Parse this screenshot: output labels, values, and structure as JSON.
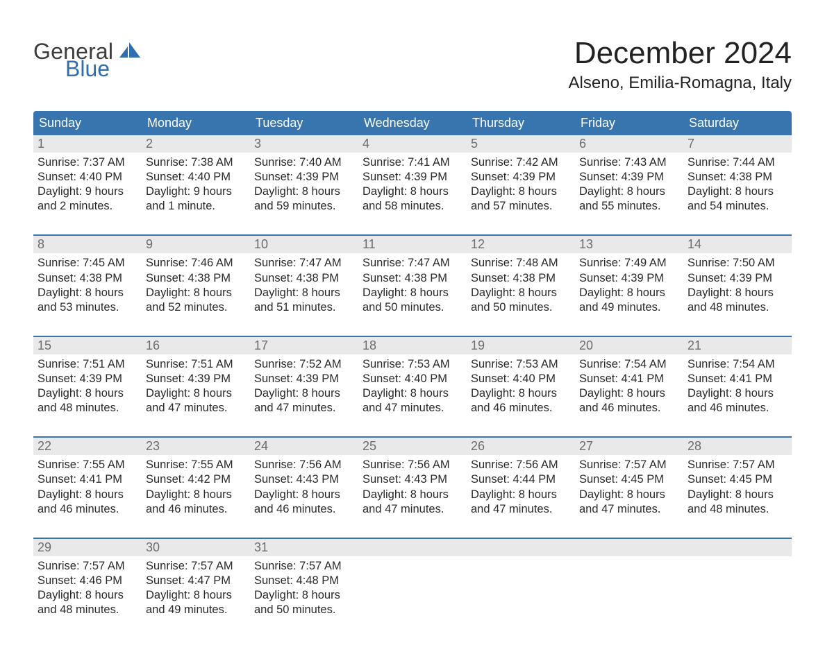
{
  "colors": {
    "header_bg": "#3874ae",
    "header_text": "#ffffff",
    "week_rule": "#3874ae",
    "daynum_bg": "#e9e9e9",
    "daynum_text": "#6c6c6c",
    "body_text": "#2a2a2a",
    "page_bg": "#ffffff",
    "logo_gray": "#3c3c3c",
    "logo_blue": "#2f6fb0"
  },
  "logo": {
    "line1": "General",
    "line2": "Blue"
  },
  "title": "December 2024",
  "location": "Alseno, Emilia-Romagna, Italy",
  "days_of_week": [
    "Sunday",
    "Monday",
    "Tuesday",
    "Wednesday",
    "Thursday",
    "Friday",
    "Saturday"
  ],
  "weeks": [
    [
      {
        "n": "1",
        "sr": "Sunrise: 7:37 AM",
        "ss": "Sunset: 4:40 PM",
        "d1": "Daylight: 9 hours",
        "d2": "and 2 minutes."
      },
      {
        "n": "2",
        "sr": "Sunrise: 7:38 AM",
        "ss": "Sunset: 4:40 PM",
        "d1": "Daylight: 9 hours",
        "d2": "and 1 minute."
      },
      {
        "n": "3",
        "sr": "Sunrise: 7:40 AM",
        "ss": "Sunset: 4:39 PM",
        "d1": "Daylight: 8 hours",
        "d2": "and 59 minutes."
      },
      {
        "n": "4",
        "sr": "Sunrise: 7:41 AM",
        "ss": "Sunset: 4:39 PM",
        "d1": "Daylight: 8 hours",
        "d2": "and 58 minutes."
      },
      {
        "n": "5",
        "sr": "Sunrise: 7:42 AM",
        "ss": "Sunset: 4:39 PM",
        "d1": "Daylight: 8 hours",
        "d2": "and 57 minutes."
      },
      {
        "n": "6",
        "sr": "Sunrise: 7:43 AM",
        "ss": "Sunset: 4:39 PM",
        "d1": "Daylight: 8 hours",
        "d2": "and 55 minutes."
      },
      {
        "n": "7",
        "sr": "Sunrise: 7:44 AM",
        "ss": "Sunset: 4:38 PM",
        "d1": "Daylight: 8 hours",
        "d2": "and 54 minutes."
      }
    ],
    [
      {
        "n": "8",
        "sr": "Sunrise: 7:45 AM",
        "ss": "Sunset: 4:38 PM",
        "d1": "Daylight: 8 hours",
        "d2": "and 53 minutes."
      },
      {
        "n": "9",
        "sr": "Sunrise: 7:46 AM",
        "ss": "Sunset: 4:38 PM",
        "d1": "Daylight: 8 hours",
        "d2": "and 52 minutes."
      },
      {
        "n": "10",
        "sr": "Sunrise: 7:47 AM",
        "ss": "Sunset: 4:38 PM",
        "d1": "Daylight: 8 hours",
        "d2": "and 51 minutes."
      },
      {
        "n": "11",
        "sr": "Sunrise: 7:47 AM",
        "ss": "Sunset: 4:38 PM",
        "d1": "Daylight: 8 hours",
        "d2": "and 50 minutes."
      },
      {
        "n": "12",
        "sr": "Sunrise: 7:48 AM",
        "ss": "Sunset: 4:38 PM",
        "d1": "Daylight: 8 hours",
        "d2": "and 50 minutes."
      },
      {
        "n": "13",
        "sr": "Sunrise: 7:49 AM",
        "ss": "Sunset: 4:39 PM",
        "d1": "Daylight: 8 hours",
        "d2": "and 49 minutes."
      },
      {
        "n": "14",
        "sr": "Sunrise: 7:50 AM",
        "ss": "Sunset: 4:39 PM",
        "d1": "Daylight: 8 hours",
        "d2": "and 48 minutes."
      }
    ],
    [
      {
        "n": "15",
        "sr": "Sunrise: 7:51 AM",
        "ss": "Sunset: 4:39 PM",
        "d1": "Daylight: 8 hours",
        "d2": "and 48 minutes."
      },
      {
        "n": "16",
        "sr": "Sunrise: 7:51 AM",
        "ss": "Sunset: 4:39 PM",
        "d1": "Daylight: 8 hours",
        "d2": "and 47 minutes."
      },
      {
        "n": "17",
        "sr": "Sunrise: 7:52 AM",
        "ss": "Sunset: 4:39 PM",
        "d1": "Daylight: 8 hours",
        "d2": "and 47 minutes."
      },
      {
        "n": "18",
        "sr": "Sunrise: 7:53 AM",
        "ss": "Sunset: 4:40 PM",
        "d1": "Daylight: 8 hours",
        "d2": "and 47 minutes."
      },
      {
        "n": "19",
        "sr": "Sunrise: 7:53 AM",
        "ss": "Sunset: 4:40 PM",
        "d1": "Daylight: 8 hours",
        "d2": "and 46 minutes."
      },
      {
        "n": "20",
        "sr": "Sunrise: 7:54 AM",
        "ss": "Sunset: 4:41 PM",
        "d1": "Daylight: 8 hours",
        "d2": "and 46 minutes."
      },
      {
        "n": "21",
        "sr": "Sunrise: 7:54 AM",
        "ss": "Sunset: 4:41 PM",
        "d1": "Daylight: 8 hours",
        "d2": "and 46 minutes."
      }
    ],
    [
      {
        "n": "22",
        "sr": "Sunrise: 7:55 AM",
        "ss": "Sunset: 4:41 PM",
        "d1": "Daylight: 8 hours",
        "d2": "and 46 minutes."
      },
      {
        "n": "23",
        "sr": "Sunrise: 7:55 AM",
        "ss": "Sunset: 4:42 PM",
        "d1": "Daylight: 8 hours",
        "d2": "and 46 minutes."
      },
      {
        "n": "24",
        "sr": "Sunrise: 7:56 AM",
        "ss": "Sunset: 4:43 PM",
        "d1": "Daylight: 8 hours",
        "d2": "and 46 minutes."
      },
      {
        "n": "25",
        "sr": "Sunrise: 7:56 AM",
        "ss": "Sunset: 4:43 PM",
        "d1": "Daylight: 8 hours",
        "d2": "and 47 minutes."
      },
      {
        "n": "26",
        "sr": "Sunrise: 7:56 AM",
        "ss": "Sunset: 4:44 PM",
        "d1": "Daylight: 8 hours",
        "d2": "and 47 minutes."
      },
      {
        "n": "27",
        "sr": "Sunrise: 7:57 AM",
        "ss": "Sunset: 4:45 PM",
        "d1": "Daylight: 8 hours",
        "d2": "and 47 minutes."
      },
      {
        "n": "28",
        "sr": "Sunrise: 7:57 AM",
        "ss": "Sunset: 4:45 PM",
        "d1": "Daylight: 8 hours",
        "d2": "and 48 minutes."
      }
    ],
    [
      {
        "n": "29",
        "sr": "Sunrise: 7:57 AM",
        "ss": "Sunset: 4:46 PM",
        "d1": "Daylight: 8 hours",
        "d2": "and 48 minutes."
      },
      {
        "n": "30",
        "sr": "Sunrise: 7:57 AM",
        "ss": "Sunset: 4:47 PM",
        "d1": "Daylight: 8 hours",
        "d2": "and 49 minutes."
      },
      {
        "n": "31",
        "sr": "Sunrise: 7:57 AM",
        "ss": "Sunset: 4:48 PM",
        "d1": "Daylight: 8 hours",
        "d2": "and 50 minutes."
      },
      null,
      null,
      null,
      null
    ]
  ]
}
